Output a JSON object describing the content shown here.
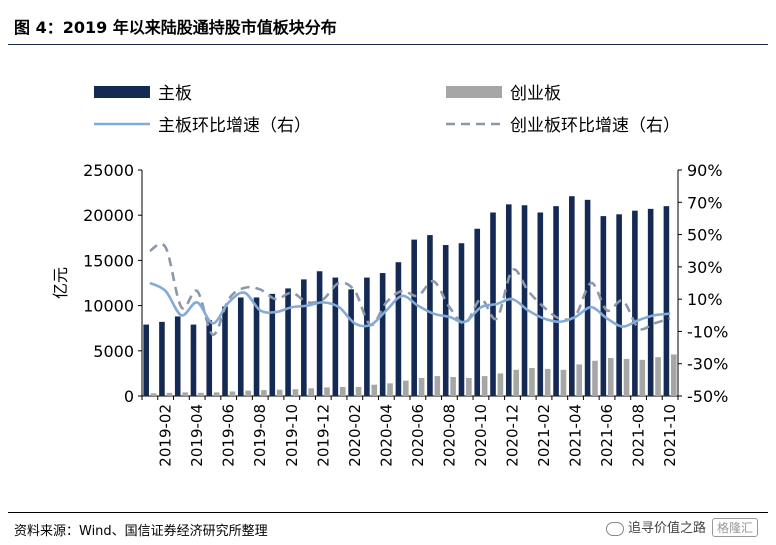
{
  "figure": {
    "title": "图 4：2019 年以来陆股通持股市值板块分布",
    "source": "资料来源：Wind、国信证券经济研究所整理",
    "watermark": "追寻价值之路",
    "watermark_logo": "格隆汇"
  },
  "colors": {
    "main_board_bar": "#142a55",
    "chinext_bar": "#a6a6a6",
    "main_board_line": "#84aad6",
    "chinext_line": "#8c98aa"
  },
  "chart_data": {
    "type": "bar",
    "title": "图 4：2019 年以来陆股通持股市值板块分布",
    "xlabel": "",
    "ylabel": "亿元",
    "ylim": [
      0,
      25000
    ],
    "y_ticks": [
      "0",
      "5000",
      "10000",
      "15000",
      "20000",
      "25000"
    ],
    "y2lim": [
      -50,
      90
    ],
    "y2_ticks": [
      "-50%",
      "-30%",
      "-10%",
      "10%",
      "30%",
      "50%",
      "70%",
      "90%"
    ],
    "grid": false,
    "legend_position": "top",
    "categories": [
      "2019-01",
      "2019-02",
      "2019-03",
      "2019-04",
      "2019-05",
      "2019-06",
      "2019-07",
      "2019-08",
      "2019-09",
      "2019-10",
      "2019-11",
      "2019-12",
      "2020-01",
      "2020-02",
      "2020-03",
      "2020-04",
      "2020-05",
      "2020-06",
      "2020-07",
      "2020-08",
      "2020-09",
      "2020-10",
      "2020-11",
      "2020-12",
      "2021-01",
      "2021-02",
      "2021-03",
      "2021-04",
      "2021-05",
      "2021-06",
      "2021-07",
      "2021-08",
      "2021-09",
      "2021-10"
    ],
    "x_tick_labels": [
      "2019-02",
      "2019-04",
      "2019-06",
      "2019-08",
      "2019-10",
      "2019-12",
      "2020-02",
      "2020-04",
      "2020-06",
      "2020-08",
      "2020-10",
      "2020-12",
      "2021-02",
      "2021-04",
      "2021-06",
      "2021-08",
      "2021-10"
    ],
    "series": [
      {
        "name": "主板",
        "kind": "bar",
        "axis": "left",
        "values": [
          7900,
          8200,
          8800,
          7900,
          8400,
          9900,
          10900,
          10900,
          11300,
          11900,
          12900,
          13800,
          13100,
          11800,
          13100,
          13600,
          14800,
          17300,
          17800,
          16700,
          16900,
          18500,
          20300,
          21200,
          21100,
          20300,
          21000,
          22100,
          21700,
          19900,
          20100,
          20500,
          20700,
          21000
        ]
      },
      {
        "name": "创业板",
        "kind": "bar",
        "axis": "left",
        "values": [
          300,
          350,
          400,
          350,
          400,
          500,
          600,
          650,
          700,
          750,
          850,
          950,
          1000,
          1000,
          1250,
          1400,
          1700,
          2000,
          2200,
          2100,
          2000,
          2200,
          2500,
          2900,
          3100,
          3000,
          2900,
          3500,
          3900,
          4200,
          4100,
          4000,
          4300,
          4600
        ]
      },
      {
        "name": "主板环比增速（右）",
        "kind": "line",
        "axis": "right",
        "style": "solid",
        "values": [
          20,
          15,
          0,
          8,
          -5,
          8,
          14,
          3,
          2,
          5,
          6,
          8,
          5,
          -5,
          -6,
          3,
          12,
          6,
          1,
          -1,
          -4,
          5,
          7,
          10,
          3,
          -2,
          -4,
          -1,
          5,
          -2,
          -7,
          -3,
          0,
          1
        ]
      },
      {
        "name": "创业板环比增速（右）",
        "kind": "line",
        "axis": "right",
        "style": "dashed",
        "values": [
          40,
          42,
          5,
          15,
          -12,
          10,
          17,
          16,
          10,
          14,
          8,
          10,
          20,
          15,
          -6,
          8,
          15,
          12,
          21,
          5,
          -5,
          10,
          -2,
          28,
          15,
          5,
          -2,
          0,
          20,
          3,
          9,
          -8,
          -5,
          -2
        ]
      }
    ]
  }
}
